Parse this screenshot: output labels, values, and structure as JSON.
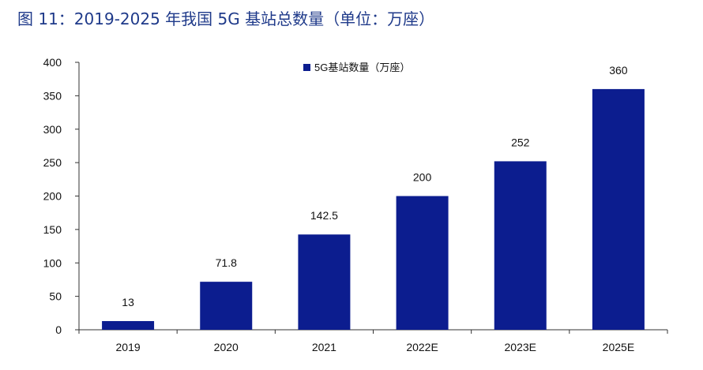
{
  "figure_title": "图 11：2019-2025 年我国 5G 基站总数量（单位：万座）",
  "chart_data": {
    "type": "bar",
    "title": "图 11：2019-2025 年我国 5G 基站总数量（单位：万座）",
    "categories": [
      "2019",
      "2020",
      "2021",
      "2022E",
      "2023E",
      "2025E"
    ],
    "series": [
      {
        "name": "5G基站数量（万座）",
        "values": [
          13,
          71.8,
          142.5,
          200,
          252,
          360
        ],
        "color": "#0c1d8f"
      }
    ],
    "data_labels": [
      "13",
      "71.8",
      "142.5",
      "200",
      "252",
      "360"
    ],
    "ylim": [
      0,
      400
    ],
    "yticks": [
      0,
      50,
      100,
      150,
      200,
      250,
      300,
      350,
      400
    ],
    "xlabel": "",
    "ylabel": "",
    "grid": false,
    "legend_position": "top-center"
  }
}
